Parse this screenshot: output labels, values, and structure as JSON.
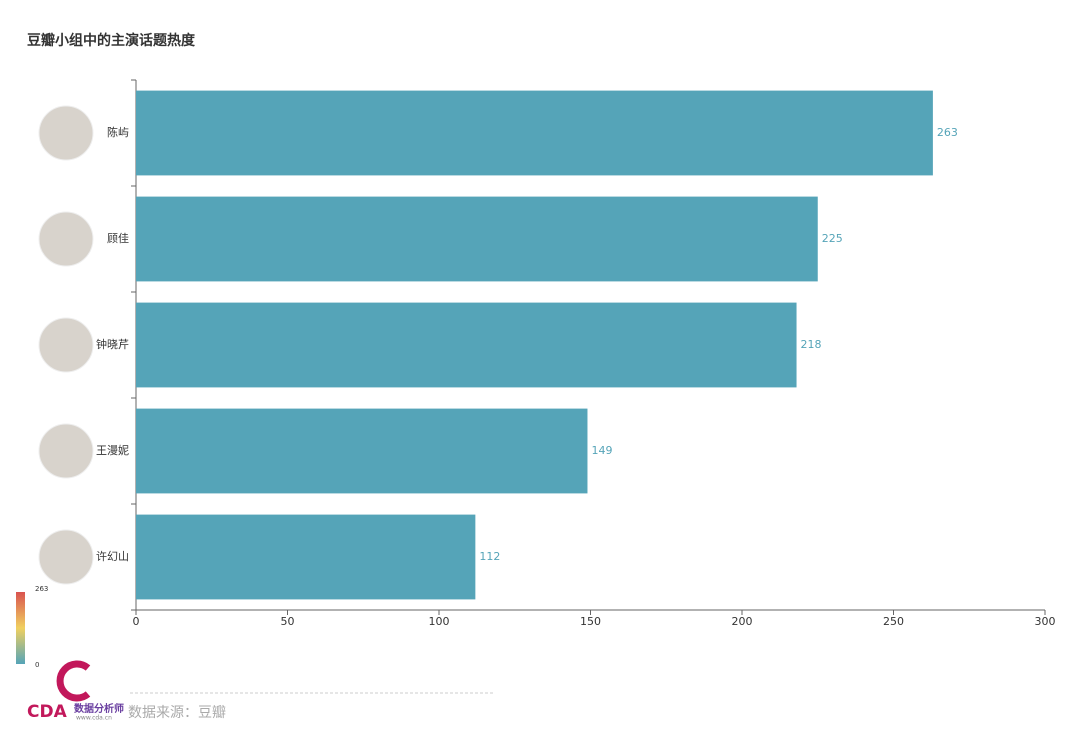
{
  "chart_data": {
    "type": "bar",
    "orientation": "horizontal",
    "title": "豆瓣小组中的主演话题热度",
    "categories": [
      "陈屿",
      "顾佳",
      "钟晓芹",
      "王漫妮",
      "许幻山"
    ],
    "values": [
      263,
      225,
      218,
      149,
      112
    ],
    "color": "#55a4b8",
    "xlim": [
      0,
      300
    ],
    "xticks": [
      0,
      50,
      100,
      150,
      200,
      250,
      300
    ],
    "grid": false,
    "visual_map": {
      "min": 0,
      "max": 263,
      "colors": [
        "#55a4b8",
        "#f0d060",
        "#d9534f"
      ]
    },
    "source": "数据来源：豆瓣",
    "logo_text": "CDA",
    "logo_subtitle": "数据分析师",
    "logo_url": "www.cda.cn"
  }
}
